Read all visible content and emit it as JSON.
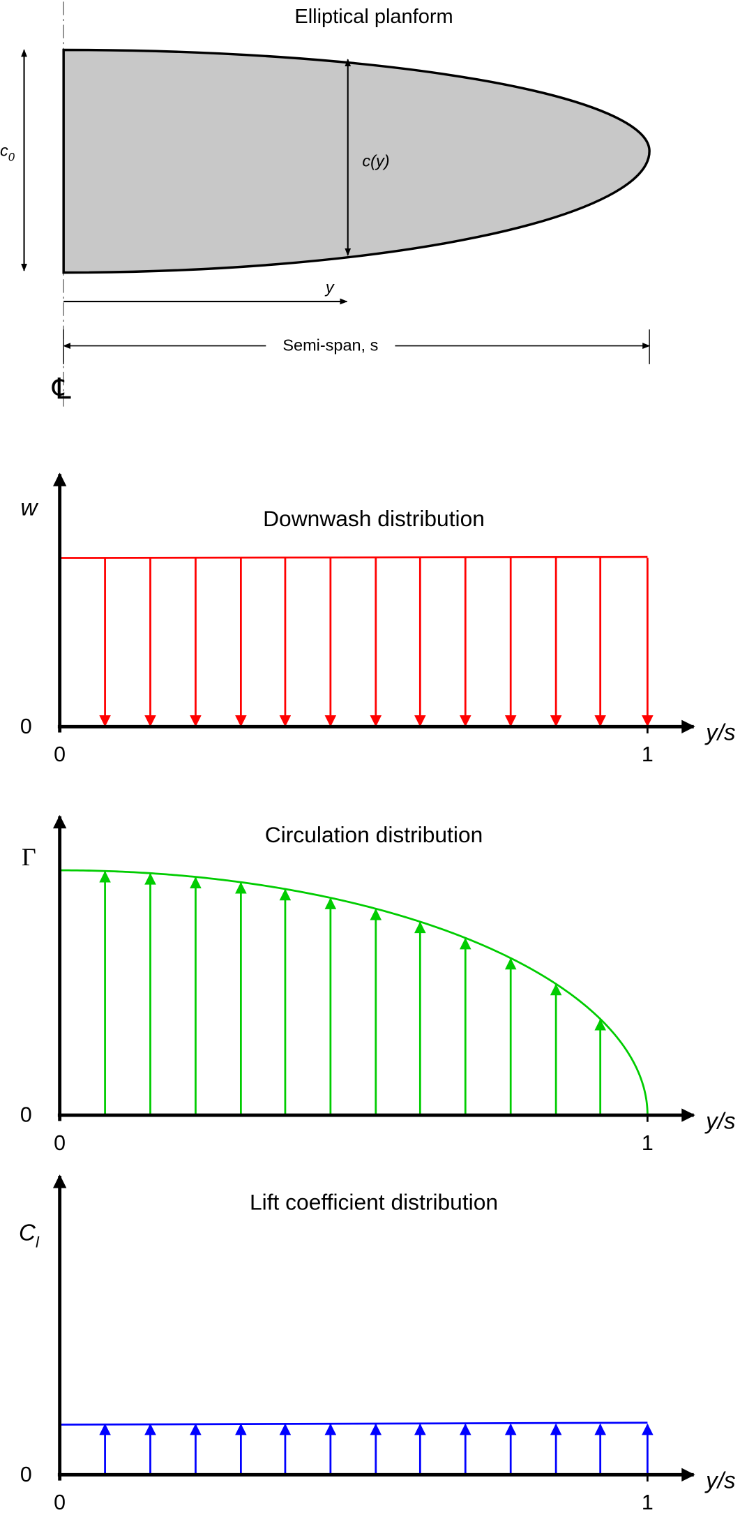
{
  "planform": {
    "title": "Elliptical planform",
    "root_chord_label": {
      "symbol": "c",
      "subscript": "0"
    },
    "local_chord_label": "c(y)",
    "span_coordinate_label": "y",
    "semi_span_label": "Semi-span, s",
    "centerline_symbol": "℄"
  },
  "panels": [
    {
      "title": "Downwash distribution",
      "y_label": {
        "symbol": "w"
      },
      "y_origin_label": "0",
      "x_start_label": "0",
      "x_end_label": "1",
      "x_label": "y/s"
    },
    {
      "title": "Circulation distribution",
      "y_label": {
        "symbol": "Γ"
      },
      "y_origin_label": "0",
      "x_start_label": "0",
      "x_end_label": "1",
      "x_label": "y/s"
    },
    {
      "title": "Lift coefficient distribution",
      "y_label": {
        "symbol": "C",
        "subscript": "l"
      },
      "y_origin_label": "0",
      "x_start_label": "0",
      "x_end_label": "1",
      "x_label": "y/s"
    }
  ]
}
